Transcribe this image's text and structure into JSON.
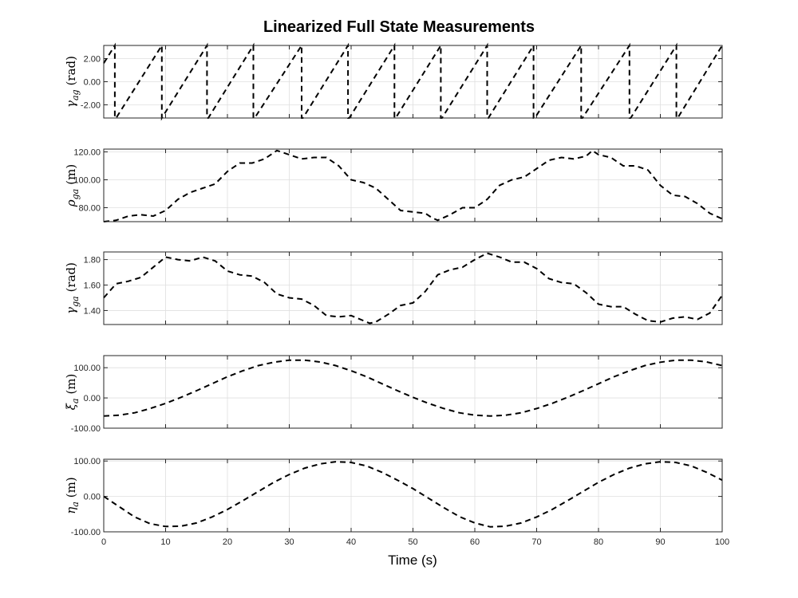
{
  "figure": {
    "title": "Linearized Full State Measurements",
    "xlabel": "Time (s)"
  },
  "chart_data": [
    {
      "type": "line",
      "ylabel": "γ_ag (rad)",
      "ylabel_main": "γ",
      "ylabel_sub": "ag",
      "ylabel_unit": "(rad)",
      "xlim": [
        0,
        100
      ],
      "ylim": [
        -3.1416,
        3.1416
      ],
      "yticks": [
        -2,
        0,
        2
      ],
      "ytick_labels": [
        "-2.00",
        "0.00",
        "2.00"
      ],
      "xticks": [
        0,
        10,
        20,
        30,
        40,
        50,
        60,
        70,
        80,
        90,
        100
      ],
      "grid": true,
      "style": "black dashed",
      "series": [
        {
          "x": [
            0,
            1.8,
            1.8,
            2.0,
            9.4,
            9.4,
            9.4,
            16.7,
            16.7,
            16.9,
            24.2,
            24.2,
            24.4,
            32.0,
            32.0,
            32.2,
            39.5,
            39.5,
            39.7,
            47.0,
            47.0,
            47.2,
            54.5,
            54.5,
            54.7,
            62.0,
            62.0,
            62.2,
            69.5,
            69.5,
            69.7,
            77.2,
            77.2,
            77.4,
            85.0,
            85.0,
            85.2,
            92.6,
            92.6,
            92.8,
            100
          ],
          "y": [
            1.6,
            3.14,
            -3.14,
            -3.14,
            3.14,
            -3.14,
            -3.14,
            3.14,
            -3.14,
            -3.14,
            3.14,
            -3.14,
            -3.14,
            3.14,
            -3.14,
            -3.14,
            3.14,
            -3.14,
            -3.14,
            3.14,
            -3.14,
            -3.14,
            3.14,
            -3.14,
            -3.14,
            3.14,
            -3.14,
            -3.14,
            3.14,
            -3.14,
            -3.14,
            3.14,
            -3.14,
            -3.14,
            3.14,
            -3.14,
            -3.14,
            3.14,
            -3.14,
            -3.14,
            3.14
          ]
        }
      ]
    },
    {
      "type": "line",
      "ylabel": "ρ_ga (m)",
      "ylabel_main": "ρ",
      "ylabel_sub": "ga",
      "ylabel_unit": "(m)",
      "xlim": [
        0,
        100
      ],
      "ylim": [
        70,
        122
      ],
      "yticks": [
        80,
        100,
        120
      ],
      "ytick_labels": [
        "80.00",
        "100.00",
        "120.00"
      ],
      "xticks": [
        0,
        10,
        20,
        30,
        40,
        50,
        60,
        70,
        80,
        90,
        100
      ],
      "grid": true,
      "style": "black dashed",
      "series": [
        {
          "x": [
            0,
            2,
            4,
            6,
            8,
            10,
            12,
            14,
            16,
            18,
            20,
            22,
            24,
            26,
            28,
            30,
            32,
            34,
            36,
            38,
            40,
            42,
            44,
            46,
            48,
            50,
            52,
            53,
            54,
            56,
            58,
            60,
            62,
            64,
            66,
            68,
            70,
            72,
            74,
            76,
            78,
            79,
            80,
            82,
            84,
            86,
            88,
            90,
            92,
            94,
            96,
            98,
            100
          ],
          "y": [
            70,
            71,
            74,
            75,
            74,
            78,
            86,
            91,
            94,
            97,
            106,
            112,
            112,
            115,
            121,
            118,
            115,
            116,
            116,
            110,
            100,
            98,
            94,
            86,
            78,
            77,
            76,
            73,
            71,
            75,
            80,
            80,
            86,
            96,
            100,
            102,
            108,
            114,
            116,
            115,
            117,
            121,
            118,
            116,
            110,
            110,
            107,
            96,
            89,
            88,
            83,
            76,
            72
          ]
        }
      ]
    },
    {
      "type": "line",
      "ylabel": "γ_ga (rad)",
      "ylabel_main": "γ",
      "ylabel_sub": "ga",
      "ylabel_unit": "(rad)",
      "xlim": [
        0,
        100
      ],
      "ylim": [
        1.29,
        1.86
      ],
      "yticks": [
        1.4,
        1.6,
        1.8
      ],
      "ytick_labels": [
        "1.40",
        "1.60",
        "1.80"
      ],
      "xticks": [
        0,
        10,
        20,
        30,
        40,
        50,
        60,
        70,
        80,
        90,
        100
      ],
      "grid": true,
      "style": "black dashed",
      "series": [
        {
          "x": [
            0,
            2,
            4,
            6,
            8,
            10,
            12,
            14,
            16,
            18,
            20,
            22,
            24,
            26,
            28,
            30,
            32,
            34,
            36,
            38,
            40,
            42,
            43,
            44,
            46,
            48,
            50,
            52,
            54,
            56,
            58,
            60,
            62,
            64,
            66,
            68,
            70,
            72,
            74,
            76,
            78,
            80,
            82,
            84,
            86,
            88,
            90,
            92,
            94,
            96,
            98,
            100
          ],
          "y": [
            1.5,
            1.61,
            1.63,
            1.66,
            1.74,
            1.82,
            1.8,
            1.79,
            1.82,
            1.79,
            1.71,
            1.68,
            1.67,
            1.62,
            1.53,
            1.5,
            1.49,
            1.44,
            1.36,
            1.35,
            1.36,
            1.32,
            1.3,
            1.31,
            1.37,
            1.44,
            1.46,
            1.55,
            1.68,
            1.72,
            1.74,
            1.8,
            1.85,
            1.82,
            1.78,
            1.78,
            1.73,
            1.65,
            1.62,
            1.61,
            1.54,
            1.45,
            1.43,
            1.43,
            1.37,
            1.32,
            1.31,
            1.34,
            1.35,
            1.33,
            1.38,
            1.52
          ]
        }
      ]
    },
    {
      "type": "line",
      "ylabel": "ξ_a (m)",
      "ylabel_main": "ξ",
      "ylabel_sub": "a",
      "ylabel_unit": "(m)",
      "xlim": [
        0,
        100
      ],
      "ylim": [
        -100,
        140
      ],
      "yticks": [
        -100,
        0,
        100
      ],
      "ytick_labels": [
        "-100.00",
        "0.00",
        "100.00"
      ],
      "xticks": [
        0,
        10,
        20,
        30,
        40,
        50,
        60,
        70,
        80,
        90,
        100
      ],
      "grid": true,
      "style": "black dashed",
      "series": [
        {
          "x": [
            0,
            2.5,
            5,
            7.5,
            10,
            12.5,
            15,
            17.5,
            20,
            22.5,
            25,
            27.5,
            30,
            32.5,
            35,
            37.5,
            40,
            42.5,
            45,
            47.5,
            50,
            52.5,
            55,
            57.5,
            60,
            62.5,
            65,
            67.5,
            70,
            72.5,
            75,
            77.5,
            80,
            82.5,
            85,
            87.5,
            90,
            92.5,
            95,
            97.5,
            100
          ],
          "y": [
            -60,
            -57,
            -49,
            -35,
            -18,
            2,
            24,
            47,
            70,
            90,
            107,
            118,
            125,
            125,
            119,
            107,
            90,
            70,
            47,
            24,
            2,
            -18,
            -35,
            -49,
            -57,
            -60,
            -57,
            -49,
            -35,
            -18,
            2,
            24,
            47,
            70,
            90,
            107,
            118,
            125,
            125,
            119,
            107
          ]
        }
      ]
    },
    {
      "type": "line",
      "ylabel": "η_a (m)",
      "ylabel_main": "η",
      "ylabel_sub": "a",
      "ylabel_unit": "(m)",
      "xlim": [
        0,
        100
      ],
      "ylim": [
        -100,
        105
      ],
      "yticks": [
        -100,
        0,
        100
      ],
      "ytick_labels": [
        "-100.00",
        "0.00",
        "100.00"
      ],
      "xticks": [
        0,
        10,
        20,
        30,
        40,
        50,
        60,
        70,
        80,
        90,
        100
      ],
      "xtick_labels": [
        "0",
        "10",
        "20",
        "30",
        "40",
        "50",
        "60",
        "70",
        "80",
        "90",
        "100"
      ],
      "grid": true,
      "style": "black dashed",
      "series": [
        {
          "x": [
            0,
            2.5,
            5,
            7.5,
            10,
            12.5,
            15,
            17.5,
            20,
            22.5,
            25,
            27.5,
            30,
            32.5,
            35,
            37.5,
            40,
            42.5,
            45,
            47.5,
            50,
            52.5,
            55,
            57.5,
            60,
            62.5,
            65,
            67.5,
            70,
            72.5,
            75,
            77.5,
            80,
            82.5,
            85,
            87.5,
            90,
            92.5,
            95,
            97.5,
            100
          ],
          "y": [
            0,
            -29,
            -58,
            -77,
            -85,
            -84,
            -75,
            -58,
            -37,
            -12,
            14,
            40,
            62,
            80,
            92,
            98,
            96,
            86,
            68,
            46,
            22,
            -5,
            -32,
            -57,
            -75,
            -86,
            -84,
            -75,
            -58,
            -37,
            -12,
            14,
            40,
            62,
            80,
            92,
            98,
            96,
            86,
            68,
            46
          ]
        }
      ]
    }
  ]
}
